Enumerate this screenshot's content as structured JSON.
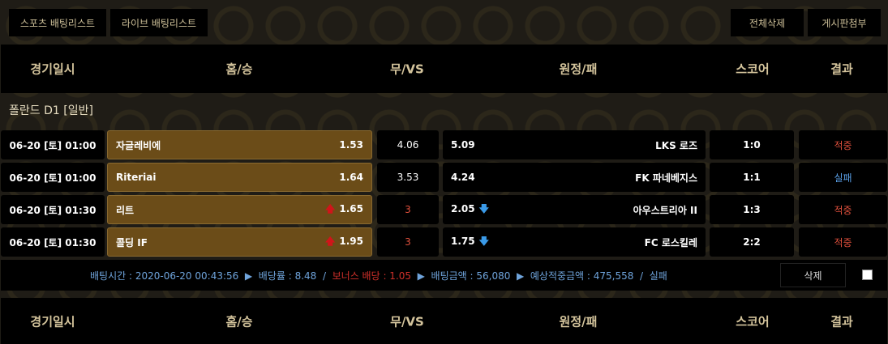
{
  "top_buttons": {
    "sports": "스포츠 배팅리스트",
    "live": "라이브 배팅리스트",
    "delete_all": "전체삭제",
    "attach": "게시판첨부"
  },
  "columns": [
    "경기일시",
    "홈/승",
    "무/VS",
    "원정/패",
    "스코어",
    "결과"
  ],
  "league": "폴란드 D1 [일반]",
  "rows": [
    {
      "date": "06-20 [토] 01:00",
      "home": "자글레비에",
      "home_odds": "1.53",
      "home_trend": "",
      "draw": "4.06",
      "draw_color": "white",
      "away_odds": "5.09",
      "away_trend": "",
      "away": "LKS 로즈",
      "score": "1:0",
      "result": "적중",
      "result_color": "red"
    },
    {
      "date": "06-20 [토] 01:00",
      "home": "Riteriai",
      "home_odds": "1.64",
      "home_trend": "",
      "draw": "3.53",
      "draw_color": "white",
      "away_odds": "4.24",
      "away_trend": "",
      "away": "FK 파네베지스",
      "score": "1:1",
      "result": "실패",
      "result_color": "blue"
    },
    {
      "date": "06-20 [토] 01:30",
      "home": "리트",
      "home_odds": "1.65",
      "home_trend": "up",
      "draw": "3",
      "draw_color": "red",
      "away_odds": "2.05",
      "away_trend": "down",
      "away": "아우스트리아 II",
      "score": "1:3",
      "result": "적중",
      "result_color": "red"
    },
    {
      "date": "06-20 [토] 01:30",
      "home": "콜딩 IF",
      "home_odds": "1.95",
      "home_trend": "up",
      "draw": "3",
      "draw_color": "red",
      "away_odds": "1.75",
      "away_trend": "down",
      "away": "FC 로스킬레",
      "score": "2:2",
      "result": "적중",
      "result_color": "red"
    }
  ],
  "summary": {
    "bet_time": "배팅시간 : 2020-06-20 00:43:56",
    "rate": "배당률 : 8.48",
    "bonus": "보너스 배당 : 1.05",
    "amount": "배팅금액 : 56,080",
    "expected": "예상적중금액 : 475,558",
    "status": "실패",
    "delete": "삭제"
  },
  "colors": {
    "accent": "#6b4c18",
    "win": "#e0503c",
    "lose": "#5aa0e8",
    "header_text": "#d4c49c"
  }
}
